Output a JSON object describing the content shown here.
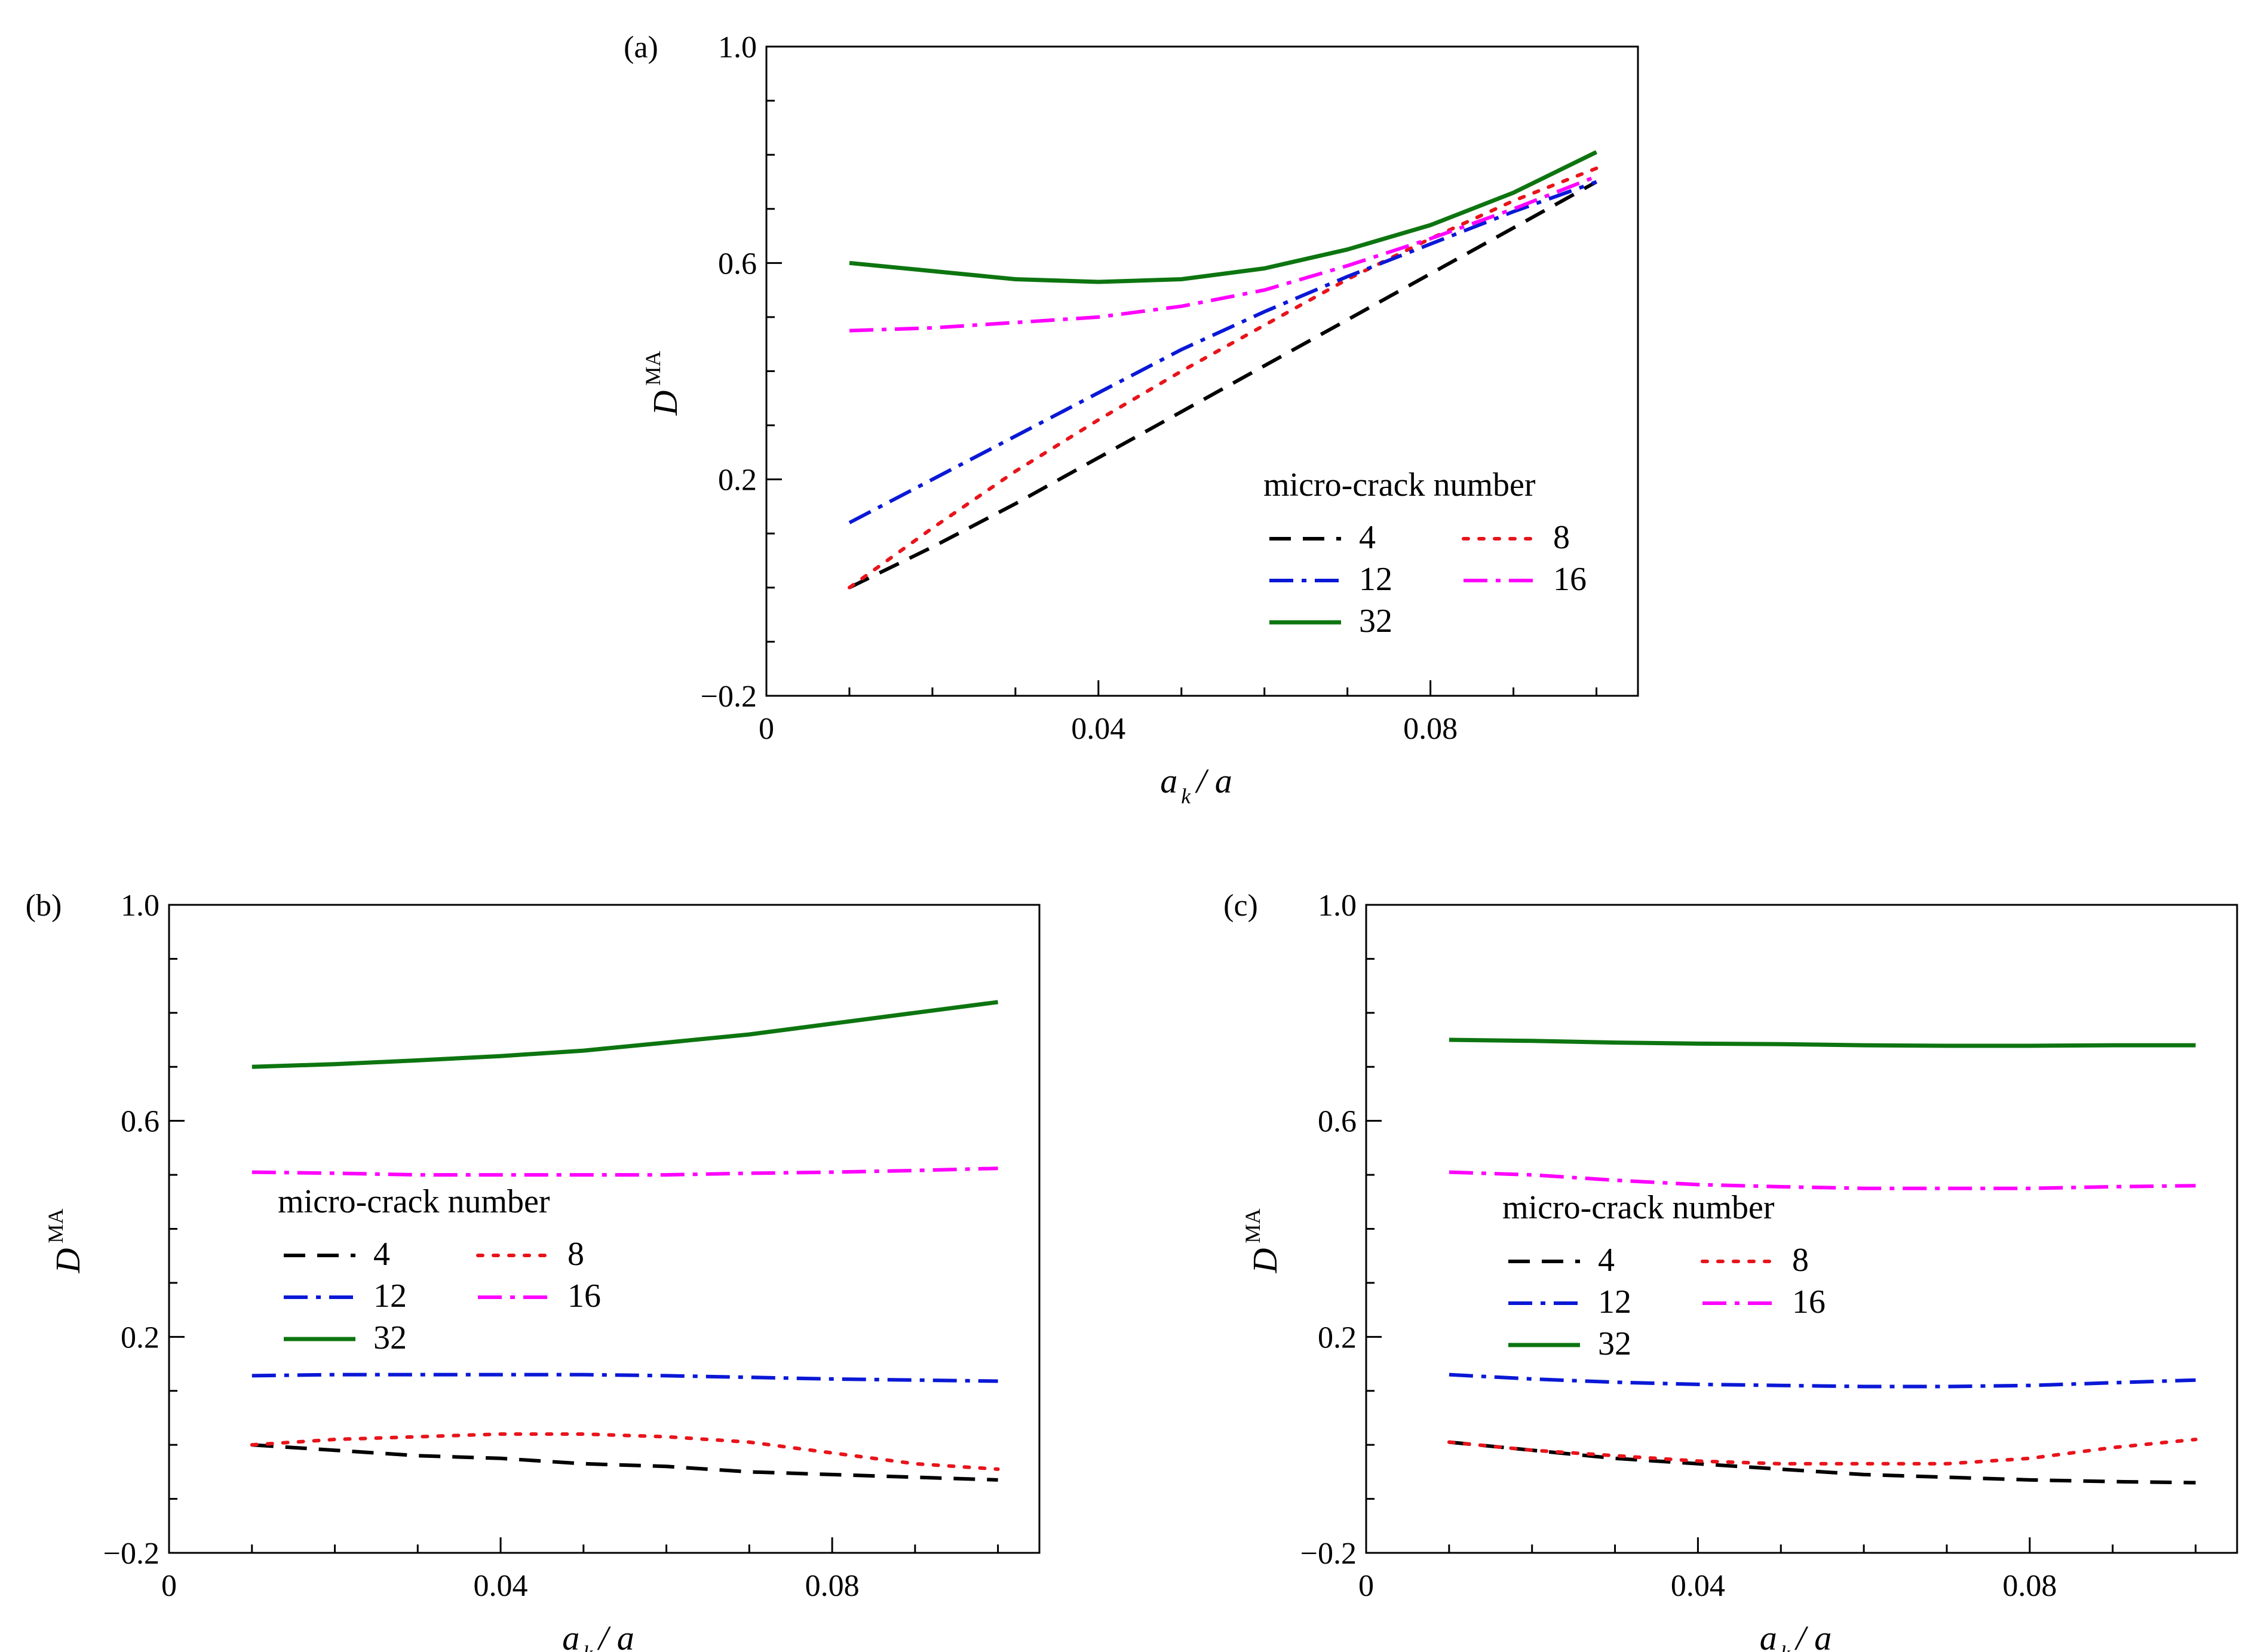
{
  "chart_data": [
    {
      "id": "a",
      "panel_label": "(a)",
      "type": "line",
      "xlabel": {
        "main": "a",
        "sub": "k",
        "rest": "/ a"
      },
      "ylabel": {
        "main": "D",
        "sup": "MA"
      },
      "xlim": [
        0,
        0.105
      ],
      "ylim": [
        -0.2,
        1.0
      ],
      "x_ticks": [
        0,
        0.04,
        0.08
      ],
      "x_tick_labels": [
        "0",
        "0.04",
        "0.08"
      ],
      "y_ticks": [
        -0.2,
        0.2,
        0.6,
        1.0
      ],
      "y_tick_labels": [
        "−0.2",
        "0.2",
        "0.6",
        "1.0"
      ],
      "legend": {
        "title": "micro-crack number",
        "placement": "lower-right"
      },
      "x": [
        0.01,
        0.02,
        0.03,
        0.04,
        0.05,
        0.06,
        0.07,
        0.08,
        0.09,
        0.1
      ],
      "series": [
        {
          "name": "4",
          "color": "#000000",
          "style": "dashed",
          "values": [
            0.0,
            0.075,
            0.155,
            0.24,
            0.325,
            0.41,
            0.495,
            0.58,
            0.665,
            0.75
          ]
        },
        {
          "name": "8",
          "color": "#e8141b",
          "style": "dotted",
          "values": [
            0.0,
            0.11,
            0.215,
            0.31,
            0.4,
            0.485,
            0.57,
            0.645,
            0.715,
            0.775
          ]
        },
        {
          "name": "12",
          "color": "#0a18d6",
          "style": "dashdot",
          "values": [
            0.12,
            0.2,
            0.28,
            0.36,
            0.44,
            0.51,
            0.575,
            0.635,
            0.695,
            0.75
          ]
        },
        {
          "name": "16",
          "color": "#ff00ff",
          "style": "dashdot",
          "values": [
            0.475,
            0.48,
            0.49,
            0.5,
            0.52,
            0.55,
            0.595,
            0.645,
            0.7,
            0.76
          ]
        },
        {
          "name": "32",
          "color": "#0d7510",
          "style": "solid",
          "values": [
            0.6,
            0.585,
            0.57,
            0.565,
            0.57,
            0.59,
            0.625,
            0.67,
            0.73,
            0.805
          ]
        }
      ]
    },
    {
      "id": "b",
      "panel_label": "(b)",
      "type": "line",
      "xlabel": {
        "main": "a",
        "sub": "k",
        "rest": "/ a"
      },
      "ylabel": {
        "main": "D",
        "sup": "MA"
      },
      "xlim": [
        0,
        0.105
      ],
      "ylim": [
        -0.2,
        1.0
      ],
      "x_ticks": [
        0,
        0.04,
        0.08
      ],
      "x_tick_labels": [
        "0",
        "0.04",
        "0.08"
      ],
      "y_ticks": [
        -0.2,
        0.2,
        0.6,
        1.0
      ],
      "y_tick_labels": [
        "−0.2",
        "0.2",
        "0.6",
        "1.0"
      ],
      "legend": {
        "title": "micro-crack number",
        "placement": "center-left"
      },
      "x": [
        0.01,
        0.02,
        0.03,
        0.04,
        0.05,
        0.06,
        0.07,
        0.08,
        0.09,
        0.1
      ],
      "series": [
        {
          "name": "4",
          "color": "#000000",
          "style": "dashed",
          "values": [
            0.0,
            -0.01,
            -0.02,
            -0.025,
            -0.035,
            -0.04,
            -0.05,
            -0.055,
            -0.06,
            -0.065
          ]
        },
        {
          "name": "8",
          "color": "#e8141b",
          "style": "dotted",
          "values": [
            0.0,
            0.01,
            0.015,
            0.02,
            0.02,
            0.015,
            0.005,
            -0.015,
            -0.035,
            -0.045
          ]
        },
        {
          "name": "12",
          "color": "#0a18d6",
          "style": "dashdot",
          "values": [
            0.128,
            0.13,
            0.13,
            0.13,
            0.13,
            0.128,
            0.125,
            0.122,
            0.12,
            0.118
          ]
        },
        {
          "name": "16",
          "color": "#ff00ff",
          "style": "dashdot",
          "values": [
            0.505,
            0.503,
            0.5,
            0.5,
            0.5,
            0.5,
            0.503,
            0.505,
            0.508,
            0.512
          ]
        },
        {
          "name": "32",
          "color": "#0d7510",
          "style": "solid",
          "values": [
            0.7,
            0.705,
            0.712,
            0.72,
            0.73,
            0.745,
            0.76,
            0.78,
            0.8,
            0.82
          ]
        }
      ]
    },
    {
      "id": "c",
      "panel_label": "(c)",
      "type": "line",
      "xlabel": {
        "main": "a",
        "sub": "k",
        "rest": "/ a"
      },
      "ylabel": {
        "main": "D",
        "sup": "MA"
      },
      "xlim": [
        0,
        0.105
      ],
      "ylim": [
        -0.2,
        1.0
      ],
      "x_ticks": [
        0,
        0.04,
        0.08
      ],
      "x_tick_labels": [
        "0",
        "0.04",
        "0.08"
      ],
      "y_ticks": [
        -0.2,
        0.2,
        0.6,
        1.0
      ],
      "y_tick_labels": [
        "−0.2",
        "0.2",
        "0.6",
        "1.0"
      ],
      "legend": {
        "title": "micro-crack number",
        "placement": "center-left"
      },
      "x": [
        0.01,
        0.02,
        0.03,
        0.04,
        0.05,
        0.06,
        0.07,
        0.08,
        0.09,
        0.1
      ],
      "series": [
        {
          "name": "4",
          "color": "#000000",
          "style": "dashed",
          "values": [
            0.005,
            -0.01,
            -0.025,
            -0.035,
            -0.045,
            -0.055,
            -0.06,
            -0.065,
            -0.068,
            -0.07
          ]
        },
        {
          "name": "8",
          "color": "#e8141b",
          "style": "dotted",
          "values": [
            0.005,
            -0.01,
            -0.02,
            -0.03,
            -0.035,
            -0.035,
            -0.035,
            -0.025,
            -0.005,
            0.01
          ]
        },
        {
          "name": "12",
          "color": "#0a18d6",
          "style": "dashdot",
          "values": [
            0.13,
            0.122,
            0.116,
            0.112,
            0.11,
            0.108,
            0.108,
            0.11,
            0.115,
            0.12
          ]
        },
        {
          "name": "16",
          "color": "#ff00ff",
          "style": "dashdot",
          "values": [
            0.505,
            0.5,
            0.49,
            0.482,
            0.478,
            0.475,
            0.475,
            0.475,
            0.478,
            0.48
          ]
        },
        {
          "name": "32",
          "color": "#0d7510",
          "style": "solid",
          "values": [
            0.75,
            0.748,
            0.745,
            0.743,
            0.742,
            0.74,
            0.739,
            0.739,
            0.74,
            0.74
          ]
        }
      ]
    }
  ]
}
